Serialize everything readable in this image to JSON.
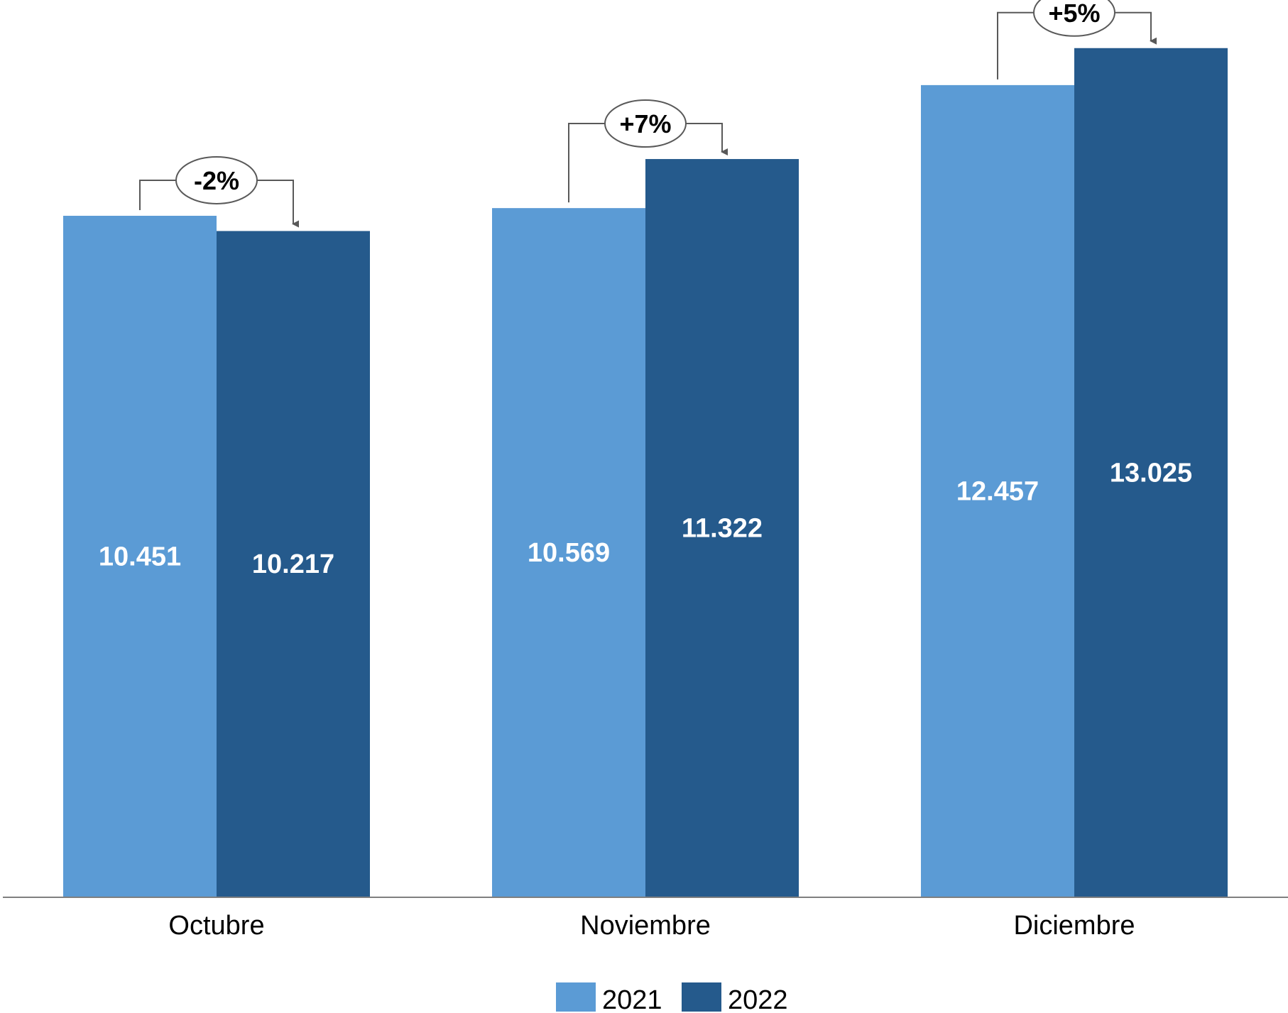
{
  "chart_data": {
    "type": "bar",
    "title": "",
    "xlabel": "",
    "ylabel": "",
    "ylim": [
      0,
      13600
    ],
    "grid": false,
    "legend_position": "bottom",
    "categories": [
      "Octubre",
      "Noviembre",
      "Diciembre"
    ],
    "series": [
      {
        "name": "2021",
        "values": [
          10451,
          10569,
          12457
        ],
        "value_labels": [
          "10.451",
          "10.569",
          "12.457"
        ],
        "color": "#5B9BD5"
      },
      {
        "name": "2022",
        "values": [
          10217,
          11322,
          13025
        ],
        "value_labels": [
          "10.217",
          "11.322",
          "13.025"
        ],
        "color": "#255A8C"
      }
    ],
    "annotations": [
      {
        "category": "Octubre",
        "text": "-2%"
      },
      {
        "category": "Noviembre",
        "text": "+7%"
      },
      {
        "category": "Diciembre",
        "text": "+5%"
      }
    ]
  },
  "colors": {
    "axis": "#7F7F7F",
    "connector": "#595959"
  }
}
